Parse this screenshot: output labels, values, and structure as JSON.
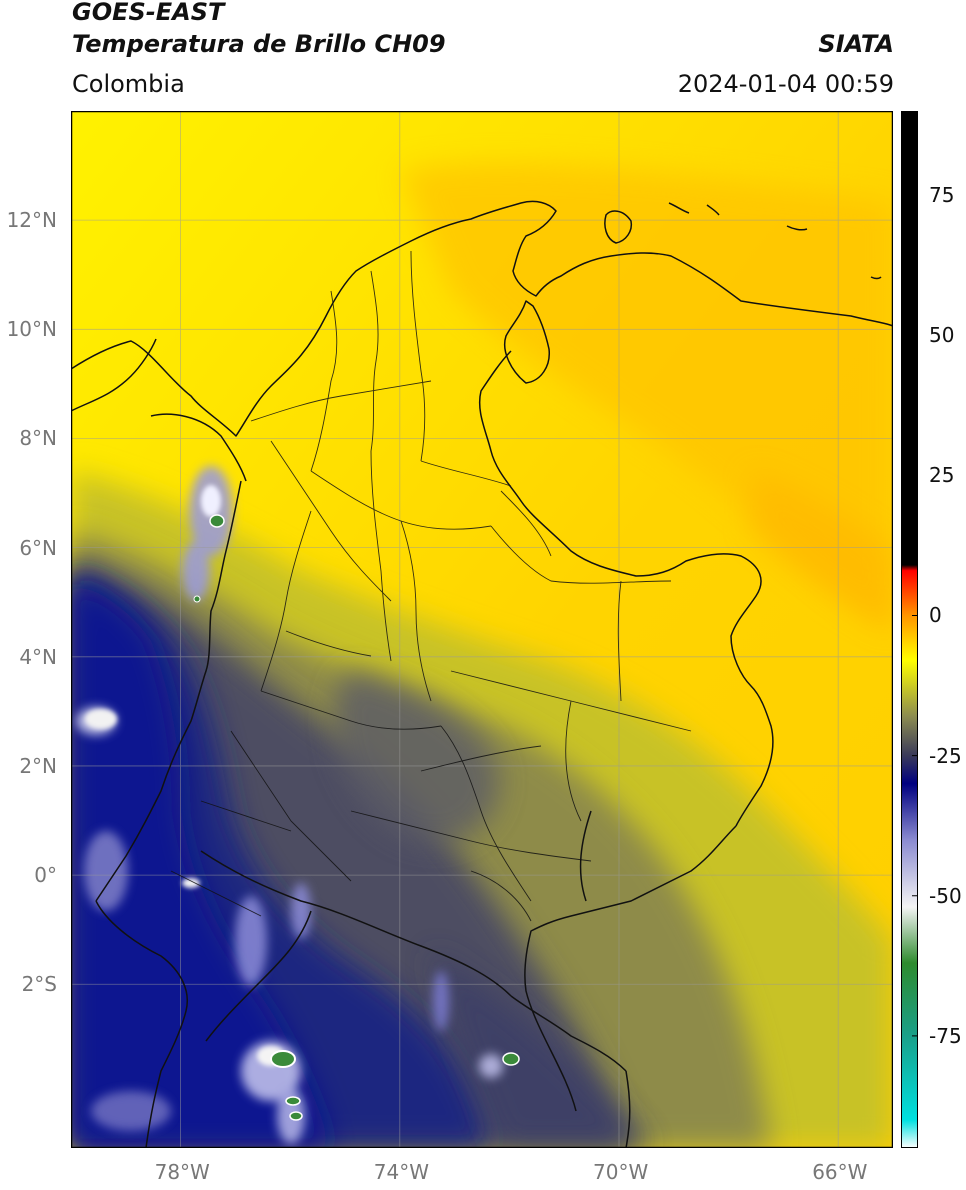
{
  "header": {
    "satellite": "GOES-EAST",
    "product": "Temperatura de Brillo CH09",
    "region": "Colombia",
    "agency": "SIATA",
    "timestamp": "2024-01-04 00:59"
  },
  "map": {
    "lon_range": [
      -80,
      -65
    ],
    "lat_range": [
      -5,
      14
    ],
    "lon_ticks": [
      {
        "value": -78,
        "label": "78°W"
      },
      {
        "value": -74,
        "label": "74°W"
      },
      {
        "value": -70,
        "label": "70°W"
      },
      {
        "value": -66,
        "label": "66°W"
      }
    ],
    "lat_ticks": [
      {
        "value": 12,
        "label": "12°N"
      },
      {
        "value": 10,
        "label": "10°N"
      },
      {
        "value": 8,
        "label": "8°N"
      },
      {
        "value": 6,
        "label": "6°N"
      },
      {
        "value": 4,
        "label": "4°N"
      },
      {
        "value": 2,
        "label": "2°N"
      },
      {
        "value": 0,
        "label": "0°"
      },
      {
        "value": -2,
        "label": "2°S"
      }
    ],
    "grid": true
  },
  "colorbar": {
    "range": [
      -95,
      90
    ],
    "ticks": [
      {
        "value": 75,
        "label": "75"
      },
      {
        "value": 50,
        "label": "50"
      },
      {
        "value": 25,
        "label": "25"
      },
      {
        "value": 0,
        "label": "0"
      },
      {
        "value": -25,
        "label": "-25"
      },
      {
        "value": -50,
        "label": "-50"
      },
      {
        "value": -75,
        "label": "-75"
      }
    ],
    "stops": [
      {
        "value": -95,
        "color": "#ffffff"
      },
      {
        "value": -90,
        "color": "#00e0e0"
      },
      {
        "value": -75,
        "color": "#1aa08a"
      },
      {
        "value": -62,
        "color": "#2e8b2e"
      },
      {
        "value": -52,
        "color": "#f4f4f4"
      },
      {
        "value": -40,
        "color": "#8a8ad0"
      },
      {
        "value": -30,
        "color": "#000080"
      },
      {
        "value": -25,
        "color": "#3a3a5a"
      },
      {
        "value": -18,
        "color": "#8c8c50"
      },
      {
        "value": -8,
        "color": "#ffff00"
      },
      {
        "value": 0,
        "color": "#ff9500"
      },
      {
        "value": 8,
        "color": "#ff0000"
      },
      {
        "value": 9,
        "color": "#000000"
      },
      {
        "value": 90,
        "color": "#000000"
      }
    ]
  }
}
